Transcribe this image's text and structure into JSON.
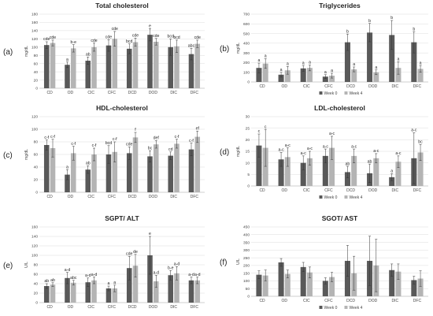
{
  "colors": {
    "week0": "#595959",
    "week4": "#b4b4b4",
    "grid": "#dcdcdc",
    "axis": "#bfbfbf",
    "error": "#333333"
  },
  "chart_data": [
    {
      "type": "bar",
      "panel_label": "(a)",
      "title": "Total cholesterol",
      "ylabel": "mg/dL",
      "ylim": [
        0,
        180
      ],
      "ytick_step": 20,
      "categories": [
        "CD",
        "OD",
        "CIC",
        "CFC",
        "DCD",
        "DOD",
        "DIC",
        "DFC"
      ],
      "legend": "none",
      "series": [
        {
          "name": "Week 0",
          "values": [
            105,
            57,
            67,
            104,
            96,
            130,
            100,
            83
          ],
          "errors": [
            8,
            7,
            9,
            14,
            12,
            15,
            20,
            14
          ],
          "letters": [
            "cde",
            "a",
            "ab",
            "cde",
            "bcd",
            "e",
            "bcd",
            "abc"
          ]
        },
        {
          "name": "Week 4",
          "values": [
            110,
            97,
            100,
            120,
            112,
            113,
            102,
            108
          ],
          "errors": [
            7,
            9,
            10,
            18,
            10,
            8,
            15,
            9
          ],
          "letters": [
            "cde",
            "b-e",
            "cde",
            "cde",
            "cde",
            "cde",
            "bcd",
            "cde"
          ]
        }
      ]
    },
    {
      "type": "bar",
      "panel_label": "(b)",
      "title": "Triglycerides",
      "ylabel": "mg/dL",
      "ylim": [
        0,
        700
      ],
      "ytick_step": 100,
      "categories": [
        "CD",
        "OD",
        "CIC",
        "CFC",
        "DCD",
        "DOD",
        "DIC",
        "DFC"
      ],
      "legend": "bottom",
      "series": [
        {
          "name": "Week 0",
          "values": [
            145,
            75,
            140,
            55,
            410,
            510,
            485,
            410
          ],
          "errors": [
            50,
            25,
            30,
            20,
            85,
            95,
            150,
            110
          ],
          "letters": [
            "a",
            "a",
            "a",
            "a",
            "b",
            "b",
            "b",
            "b"
          ]
        },
        {
          "name": "Week 4",
          "values": [
            190,
            120,
            145,
            65,
            130,
            100,
            145,
            135
          ],
          "errors": [
            50,
            40,
            30,
            25,
            25,
            25,
            65,
            35
          ],
          "letters": [
            "a",
            "a",
            "a",
            "a",
            "a",
            "a",
            "a",
            "a"
          ]
        }
      ]
    },
    {
      "type": "bar",
      "panel_label": "(c)",
      "title": "HDL-cholesterol",
      "ylabel": "mg/dL",
      "ylim": [
        0,
        120
      ],
      "ytick_step": 20,
      "categories": [
        "CD",
        "OD",
        "CIC",
        "CFC",
        "DCD",
        "DOD",
        "DIC",
        "DFC"
      ],
      "legend": "none",
      "series": [
        {
          "name": "Week 0",
          "values": [
            75,
            28,
            36,
            60,
            62,
            57,
            58,
            68
          ],
          "errors": [
            8,
            8,
            6,
            14,
            10,
            9,
            6,
            10
          ],
          "letters": [
            "c-f",
            "a",
            "ab",
            "bcd",
            "cde",
            "bc",
            "cd",
            "c-f"
          ]
        },
        {
          "name": "Week 4",
          "values": [
            70,
            62,
            60,
            64,
            87,
            76,
            77,
            88
          ],
          "errors": [
            14,
            11,
            10,
            16,
            8,
            6,
            7,
            9
          ],
          "letters": [
            "c-f",
            "c-f",
            "c-f",
            "c-f",
            "f",
            "def",
            "c-f",
            "ef"
          ]
        }
      ]
    },
    {
      "type": "bar",
      "panel_label": "(d)",
      "title": "LDL-cholesterol",
      "ylabel": "mg/dL",
      "ylim": [
        0,
        30
      ],
      "ytick_step": 5,
      "categories": [
        "CD",
        "OD",
        "CIC",
        "CFC",
        "DCD",
        "DOD",
        "DIC",
        "DFC"
      ],
      "legend": "bottom",
      "series": [
        {
          "name": "Week 0",
          "values": [
            17.5,
            11.5,
            10,
            13,
            6,
            5.5,
            3.8,
            12
          ],
          "errors": [
            5,
            3,
            3,
            3,
            2.5,
            4,
            1.5,
            11
          ],
          "letters": [
            "c",
            "a-c",
            "a-c",
            "a-c",
            "ab",
            "ab",
            "a",
            "a-c"
          ]
        },
        {
          "name": "Week 4",
          "values": [
            16.5,
            12.5,
            12,
            16.5,
            13,
            12,
            10.5,
            14.5
          ],
          "errors": [
            8,
            4,
            3,
            5,
            3,
            2,
            2.5,
            3.5
          ],
          "letters": [
            "c",
            "a-c",
            "a-c",
            "a-c",
            "a-c",
            "a-c",
            "a-c",
            "bc"
          ]
        }
      ]
    },
    {
      "type": "bar",
      "panel_label": "(e)",
      "title": "SGPT/ ALT",
      "ylabel": "U/L",
      "ylim": [
        0,
        160
      ],
      "ytick_step": 20,
      "categories": [
        "CD",
        "OD",
        "CIC",
        "CFC",
        "DCD",
        "DOD",
        "DIC",
        "DFC"
      ],
      "legend": "none",
      "series": [
        {
          "name": "Week 0",
          "values": [
            35,
            52,
            43,
            30,
            73,
            100,
            58,
            47
          ],
          "errors": [
            5,
            12,
            9,
            5,
            25,
            40,
            10,
            7
          ],
          "letters": [
            "ab",
            "a-d",
            "a-d",
            "a",
            "cde",
            "e",
            "b-e",
            "a-d"
          ]
        },
        {
          "name": "Week 4",
          "values": [
            38,
            42,
            47,
            30,
            78,
            45,
            62,
            47
          ],
          "errors": [
            4,
            5,
            7,
            7,
            24,
            13,
            14,
            7
          ],
          "letters": [
            "ab",
            "abc",
            "a-d",
            "a",
            "de",
            "a-d",
            "a-d",
            "a-d"
          ]
        }
      ]
    },
    {
      "type": "bar",
      "panel_label": "(f)",
      "title": "SGOT/ AST",
      "ylabel": "U/L",
      "ylim": [
        0,
        450
      ],
      "ytick_step": 50,
      "categories": [
        "CD",
        "OD",
        "CIC",
        "CFC",
        "DCD",
        "DOD",
        "DIC",
        "DFC"
      ],
      "legend": "bottom",
      "series": [
        {
          "name": "Week 0",
          "values": [
            140,
            220,
            190,
            100,
            230,
            230,
            170,
            105
          ],
          "errors": [
            25,
            25,
            30,
            20,
            100,
            160,
            40,
            25
          ],
          "letters": [
            "",
            "",
            "",
            "",
            "",
            "",
            "",
            ""
          ]
        },
        {
          "name": "Week 4",
          "values": [
            135,
            145,
            155,
            125,
            150,
            200,
            160,
            115
          ],
          "errors": [
            35,
            25,
            35,
            30,
            110,
            170,
            50,
            50
          ],
          "letters": [
            "",
            "",
            "",
            "",
            "",
            "",
            "",
            ""
          ]
        }
      ]
    }
  ]
}
